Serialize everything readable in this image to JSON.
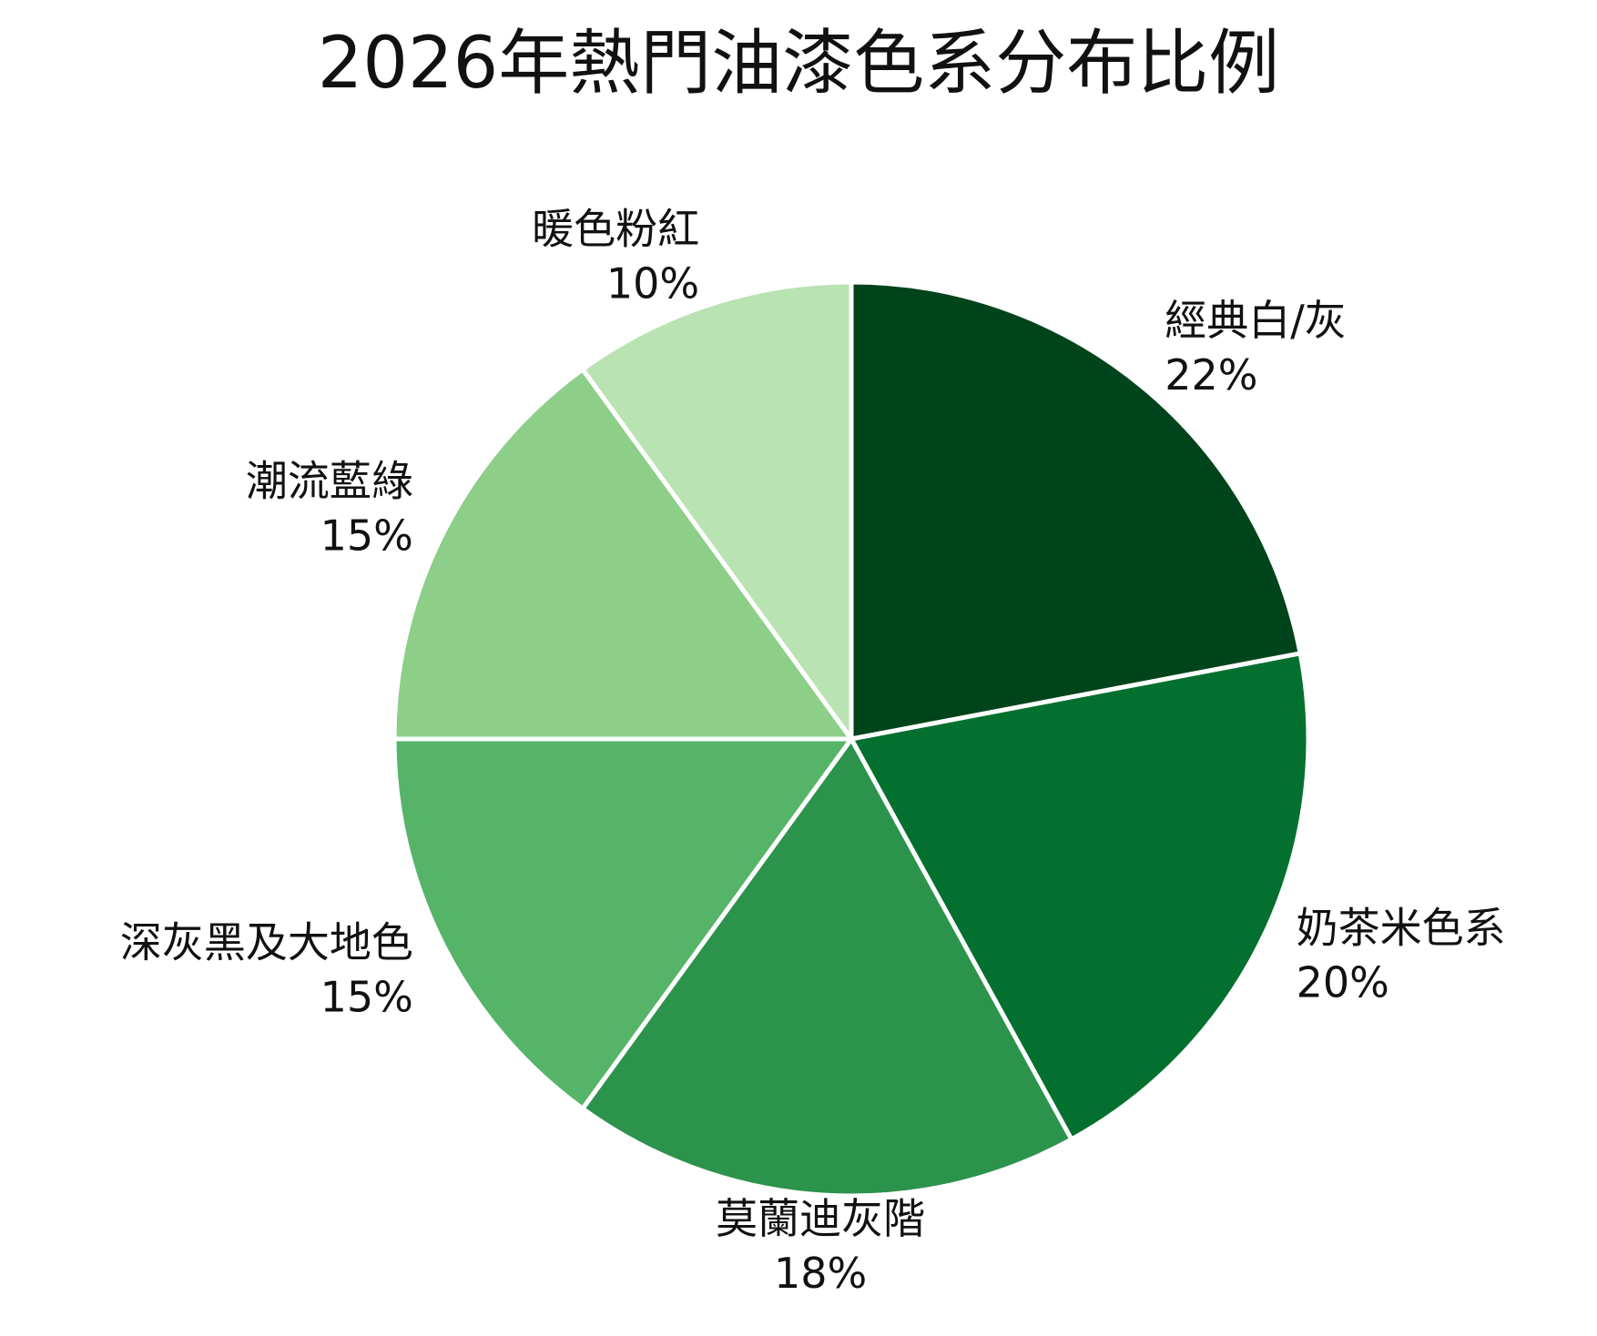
{
  "chart_data": {
    "type": "pie",
    "title": "2026年熱門油漆色系分布比例",
    "start_angle_deg": 0,
    "direction": "clockwise",
    "legend": "none",
    "slices": [
      {
        "label": "經典白/灰",
        "value": 22,
        "value_label": "22%",
        "color": "#00441b"
      },
      {
        "label": "奶茶米色系",
        "value": 20,
        "value_label": "20%",
        "color": "#04702f"
      },
      {
        "label": "莫蘭迪灰階",
        "value": 18,
        "value_label": "18%",
        "color": "#2c934c"
      },
      {
        "label": "深灰黑及大地色",
        "value": 15,
        "value_label": "15%",
        "color": "#56b468"
      },
      {
        "label": "潮流藍綠",
        "value": 15,
        "value_label": "15%",
        "color": "#8dce88"
      },
      {
        "label": "暖色粉紅",
        "value": 10,
        "value_label": "10%",
        "color": "#b9e3b2"
      }
    ]
  }
}
